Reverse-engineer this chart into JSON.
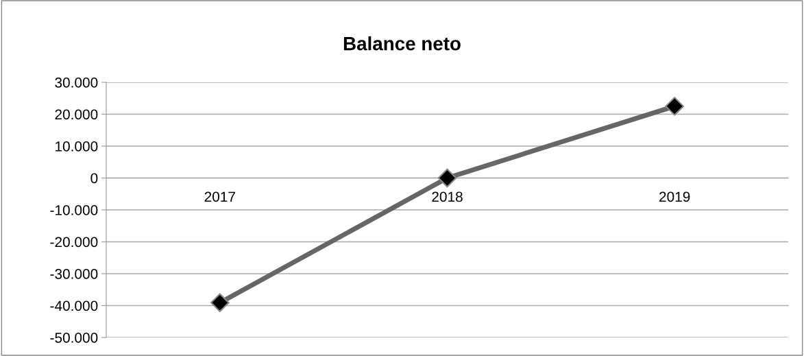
{
  "chart_data": {
    "type": "line",
    "title": "Balance neto",
    "categories": [
      "2017",
      "2018",
      "2019"
    ],
    "series": [
      {
        "color": "#666666",
        "values": [
          -39100,
          0,
          22500
        ]
      }
    ],
    "ylim": [
      -50000,
      30000
    ],
    "yticks": [
      {
        "value": -50000,
        "label": "-50.000"
      },
      {
        "value": -40000,
        "label": "-40.000"
      },
      {
        "value": -30000,
        "label": "-30.000"
      },
      {
        "value": -20000,
        "label": "-20.000"
      },
      {
        "value": -10000,
        "label": "-10.000"
      },
      {
        "value": 0,
        "label": "0"
      },
      {
        "value": 10000,
        "label": "10.000"
      },
      {
        "value": 20000,
        "label": "20.000"
      },
      {
        "value": 30000,
        "label": "30.000"
      }
    ],
    "grid": "y",
    "marker": "diamond",
    "line_style": "solid"
  }
}
